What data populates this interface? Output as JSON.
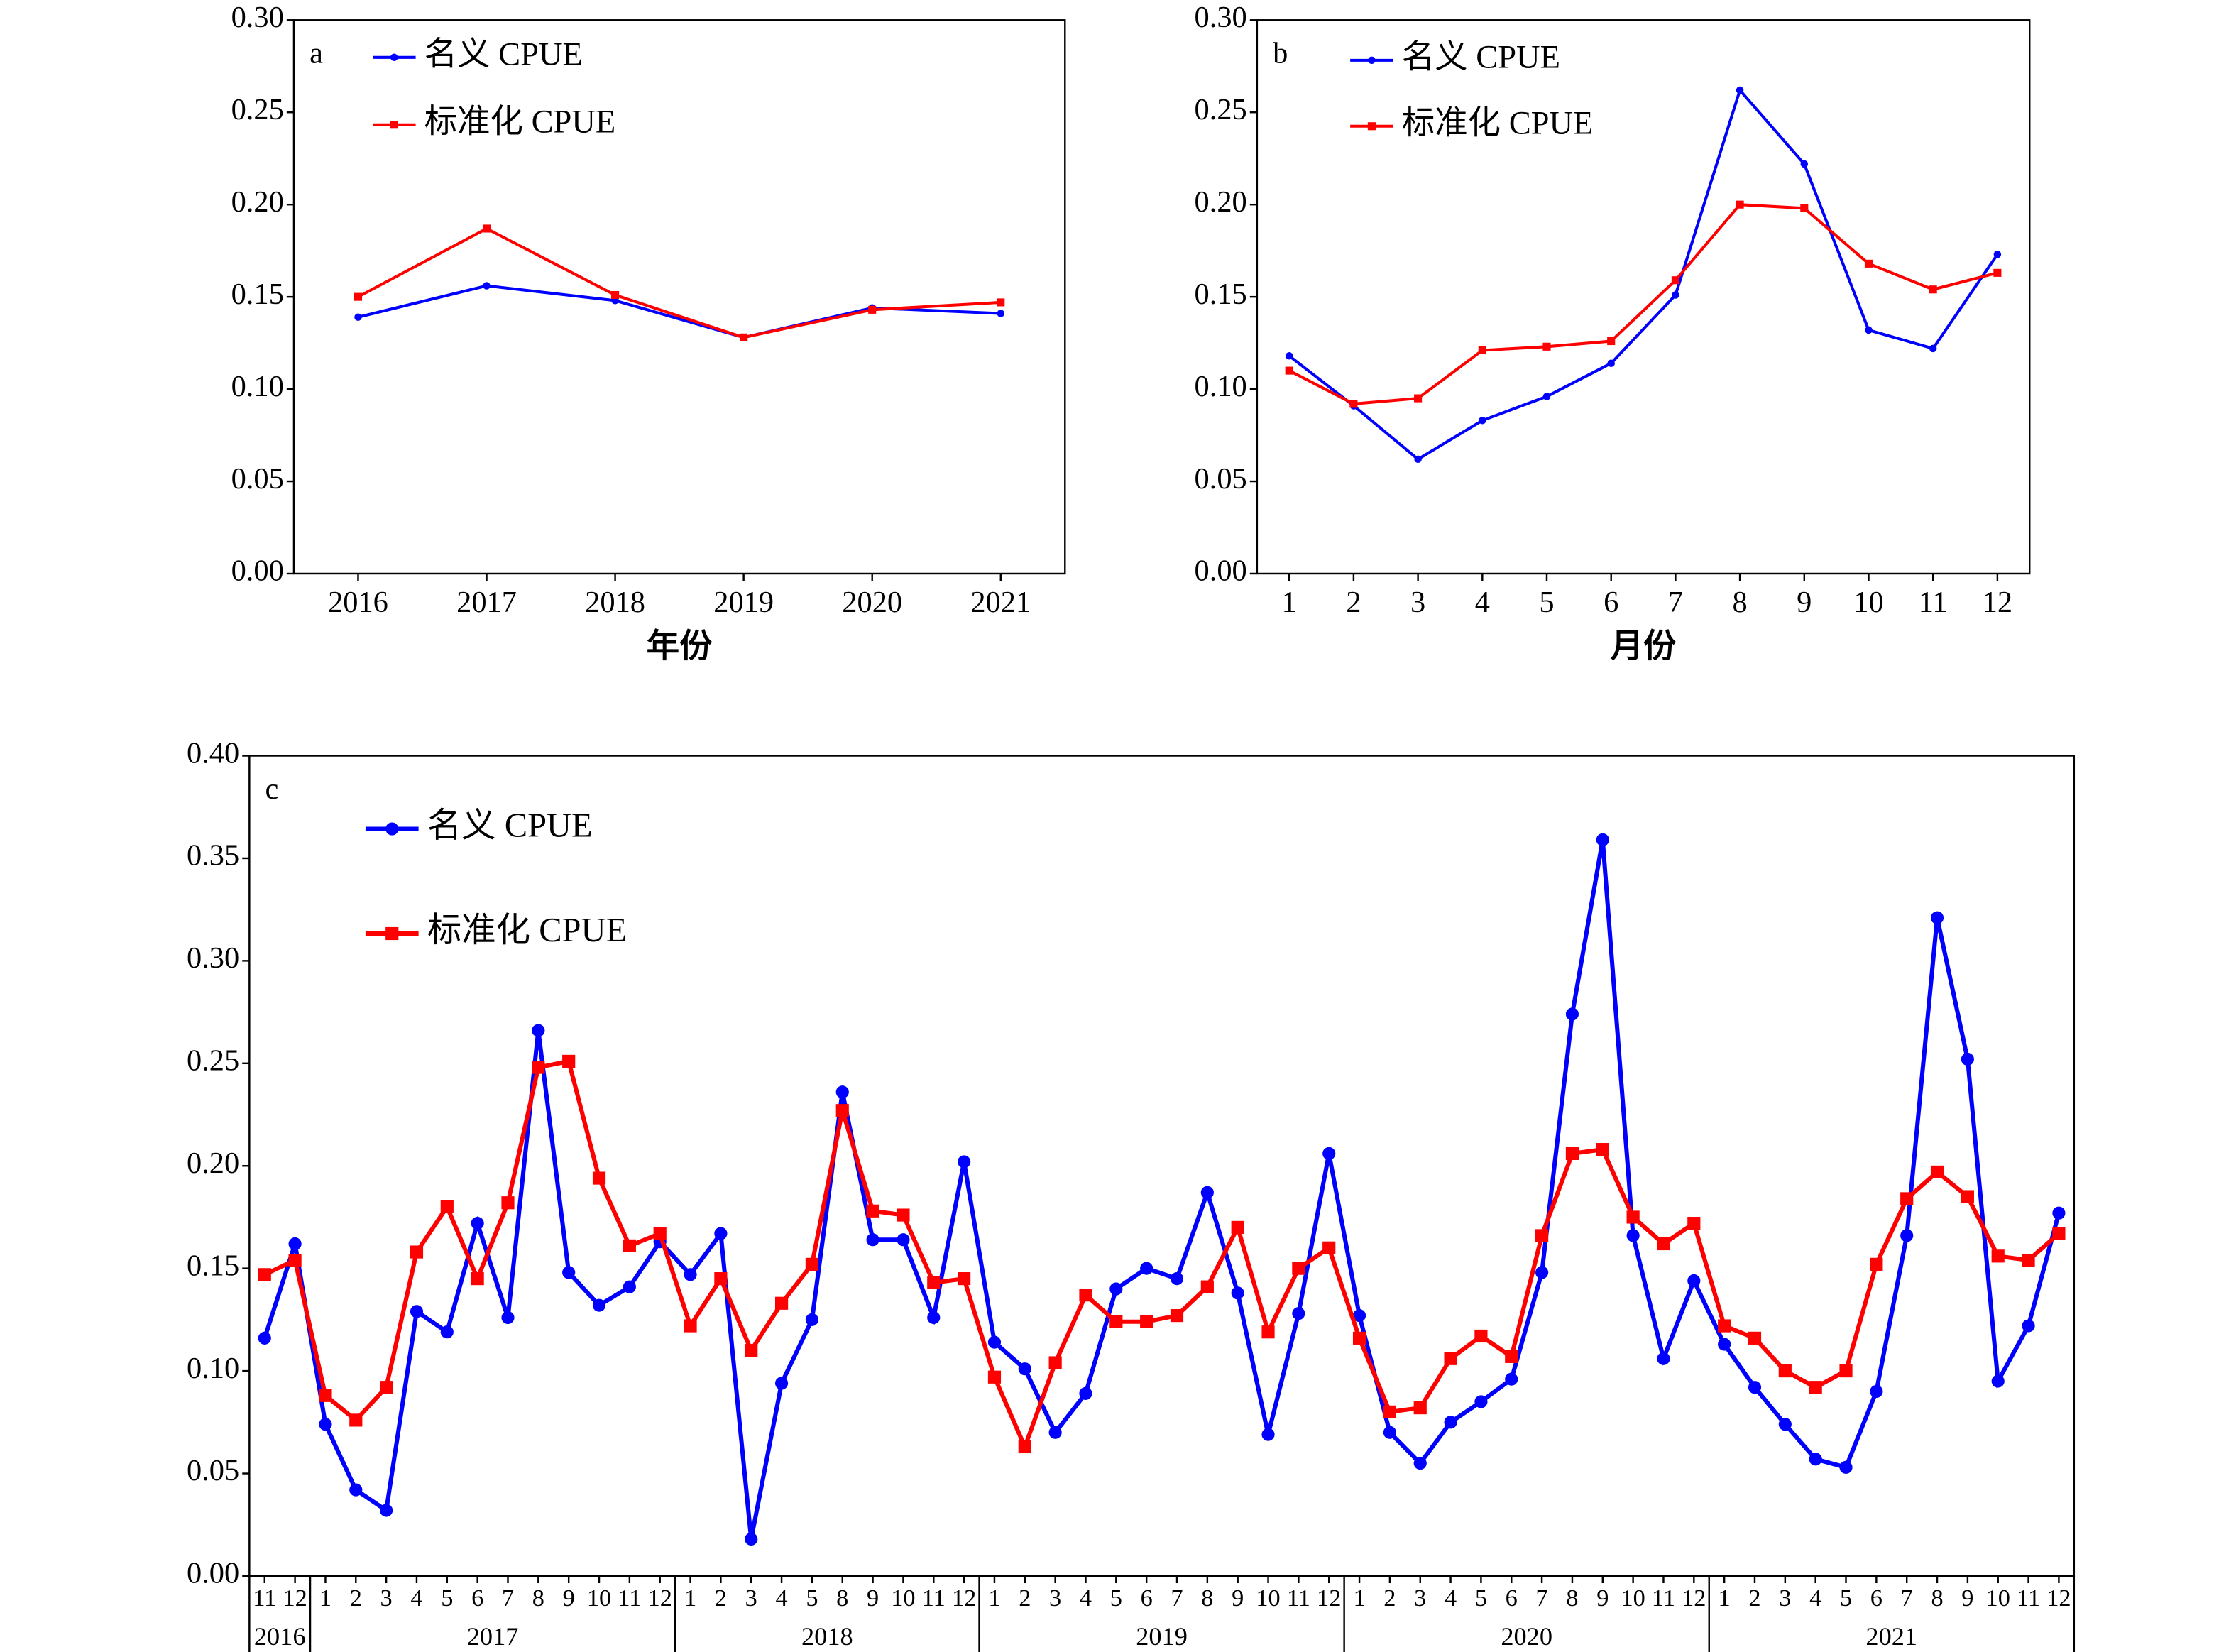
{
  "chart_data": [
    {
      "type": "line",
      "label": "a",
      "x_label": "年份",
      "categories": [
        "2016",
        "2017",
        "2018",
        "2019",
        "2020",
        "2021"
      ],
      "ylim": [
        0,
        0.3
      ],
      "yticks": [
        {
          "value": 0,
          "label": "0.00"
        },
        {
          "value": 0.05,
          "label": "0.05"
        },
        {
          "value": 0.1,
          "label": "0.10"
        },
        {
          "value": 0.15,
          "label": "0.15"
        },
        {
          "value": 0.2,
          "label": "0.20"
        },
        {
          "value": 0.25,
          "label": "0.25"
        },
        {
          "value": 0.3,
          "label": "0.30"
        }
      ],
      "legend": "upper left",
      "series": [
        {
          "name": "名义 CPUE",
          "color": "#0000ff",
          "marker": "circle",
          "values": [
            0.139,
            0.156,
            0.148,
            0.128,
            0.144,
            0.141
          ]
        },
        {
          "name": "标准化 CPUE",
          "color": "#ff0000",
          "marker": "square",
          "values": [
            0.15,
            0.187,
            0.151,
            0.128,
            0.143,
            0.147
          ]
        }
      ]
    },
    {
      "type": "line",
      "label": "b",
      "x_label": "月份",
      "categories": [
        "1",
        "2",
        "3",
        "4",
        "5",
        "6",
        "7",
        "8",
        "9",
        "10",
        "11",
        "12"
      ],
      "ylim": [
        0,
        0.3
      ],
      "yticks": [
        {
          "value": 0,
          "label": "0.00"
        },
        {
          "value": 0.05,
          "label": "0.05"
        },
        {
          "value": 0.1,
          "label": "0.10"
        },
        {
          "value": 0.15,
          "label": "0.15"
        },
        {
          "value": 0.2,
          "label": "0.20"
        },
        {
          "value": 0.25,
          "label": "0.25"
        },
        {
          "value": 0.3,
          "label": "0.30"
        }
      ],
      "legend": "upper left",
      "series": [
        {
          "name": "名义 CPUE",
          "color": "#0000ff",
          "marker": "circle",
          "values": [
            0.118,
            0.091,
            0.062,
            0.083,
            0.096,
            0.114,
            0.151,
            0.262,
            0.222,
            0.132,
            0.122,
            0.173
          ]
        },
        {
          "name": "标准化 CPUE",
          "color": "#ff0000",
          "marker": "square",
          "values": [
            0.11,
            0.092,
            0.095,
            0.121,
            0.123,
            0.126,
            0.159,
            0.2,
            0.198,
            0.168,
            0.154,
            0.163
          ]
        }
      ]
    },
    {
      "type": "line",
      "label": "c",
      "categories": [
        "11",
        "12",
        "1",
        "2",
        "3",
        "4",
        "5",
        "6",
        "7",
        "8",
        "9",
        "10",
        "11",
        "12",
        "1",
        "2",
        "3",
        "4",
        "5",
        "8",
        "9",
        "10",
        "11",
        "12",
        "1",
        "2",
        "3",
        "4",
        "5",
        "6",
        "7",
        "8",
        "9",
        "10",
        "11",
        "12",
        "1",
        "2",
        "3",
        "4",
        "5",
        "6",
        "7",
        "8",
        "9",
        "10",
        "11",
        "12",
        "1",
        "2",
        "3",
        "4",
        "5",
        "6",
        "7",
        "8",
        "9",
        "10",
        "11",
        "12"
      ],
      "year_labels": [
        "2016",
        "2017",
        "2018",
        "2019",
        "2020",
        "2021"
      ],
      "ylim": [
        0,
        0.4
      ],
      "yticks": [
        {
          "value": 0,
          "label": "0.00"
        },
        {
          "value": 0.05,
          "label": "0.05"
        },
        {
          "value": 0.1,
          "label": "0.10"
        },
        {
          "value": 0.15,
          "label": "0.15"
        },
        {
          "value": 0.2,
          "label": "0.20"
        },
        {
          "value": 0.25,
          "label": "0.25"
        },
        {
          "value": 0.3,
          "label": "0.30"
        },
        {
          "value": 0.35,
          "label": "0.35"
        },
        {
          "value": 0.4,
          "label": "0.40"
        }
      ],
      "legend": "upper left",
      "series": [
        {
          "name": "名义 CPUE",
          "color": "#0000ff",
          "marker": "circle",
          "values": [
            0.116,
            0.162,
            0.074,
            0.042,
            0.032,
            0.129,
            0.119,
            0.172,
            0.126,
            0.266,
            0.148,
            0.132,
            0.141,
            0.163,
            0.147,
            0.167,
            0.018,
            0.094,
            0.125,
            0.236,
            0.164,
            0.164,
            0.126,
            0.202,
            0.114,
            0.101,
            0.07,
            0.089,
            0.14,
            0.15,
            0.145,
            0.187,
            0.138,
            0.069,
            0.128,
            0.206,
            0.127,
            0.07,
            0.055,
            0.075,
            0.085,
            0.096,
            0.148,
            0.274,
            0.359,
            0.166,
            0.106,
            0.144,
            0.113,
            0.092,
            0.074,
            0.057,
            0.053,
            0.09,
            0.166,
            0.321,
            0.252,
            0.095,
            0.122,
            0.177
          ]
        },
        {
          "name": "标准化 CPUE",
          "color": "#ff0000",
          "marker": "square",
          "values": [
            0.147,
            0.154,
            0.088,
            0.076,
            0.092,
            0.158,
            0.18,
            0.145,
            0.182,
            0.248,
            0.251,
            0.194,
            0.161,
            0.167,
            0.122,
            0.145,
            0.11,
            0.133,
            0.152,
            0.227,
            0.178,
            0.176,
            0.143,
            0.145,
            0.097,
            0.063,
            0.104,
            0.137,
            0.124,
            0.124,
            0.127,
            0.141,
            0.17,
            0.119,
            0.15,
            0.16,
            0.116,
            0.08,
            0.082,
            0.106,
            0.117,
            0.107,
            0.166,
            0.206,
            0.208,
            0.175,
            0.162,
            0.172,
            0.122,
            0.116,
            0.1,
            0.092,
            0.1,
            0.152,
            0.184,
            0.197,
            0.185,
            0.156,
            0.154,
            0.167
          ]
        }
      ]
    }
  ]
}
